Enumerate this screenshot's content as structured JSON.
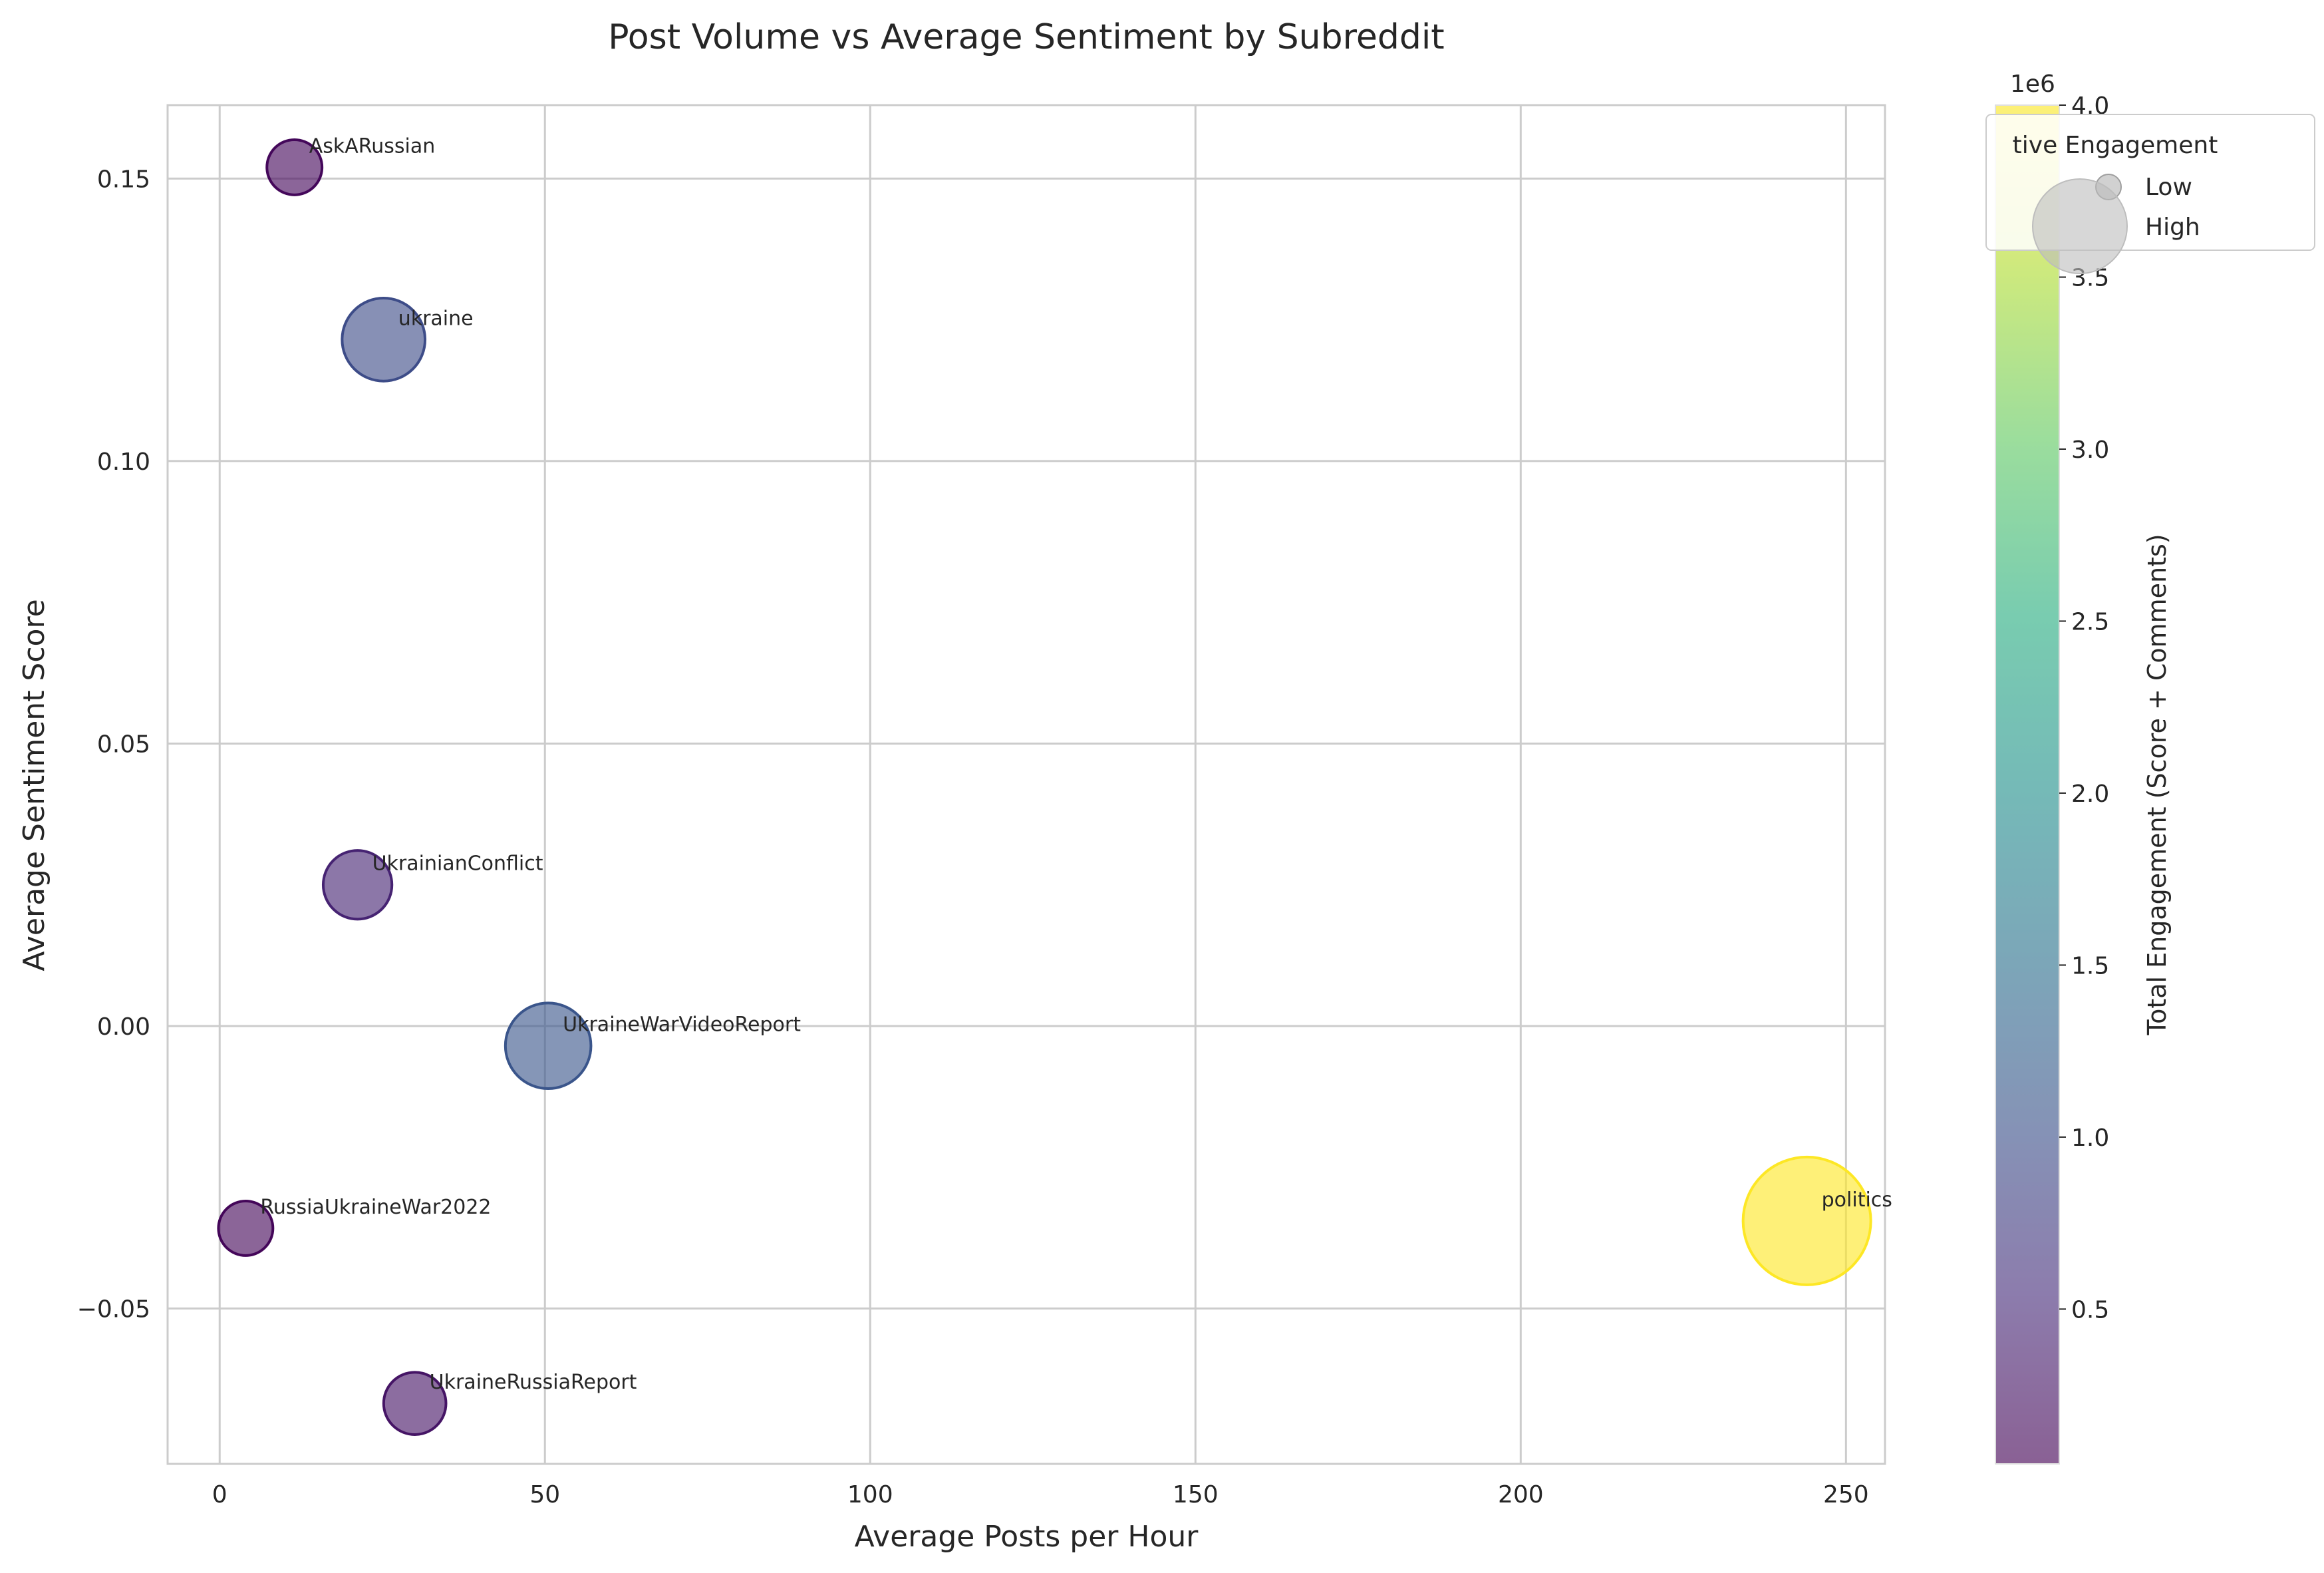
{
  "chart_data": {
    "type": "scatter",
    "title": "Post Volume vs Average Sentiment by Subreddit",
    "xlabel": "Average Posts per Hour",
    "ylabel": "Average Sentiment Score",
    "xlim": [
      -8,
      256
    ],
    "ylim": [
      -0.0775,
      0.163
    ],
    "xticks": [
      0,
      50,
      100,
      150,
      200,
      250
    ],
    "xtick_labels": [
      "0",
      "50",
      "100",
      "150",
      "200",
      "250"
    ],
    "yticks": [
      -0.05,
      0,
      0.05,
      0.1,
      0.15
    ],
    "ytick_labels": [
      "−0.05",
      "0.00",
      "0.05",
      "0.10",
      "0.15"
    ],
    "grid": true,
    "points": [
      {
        "label": "AskARussian",
        "x": 11.5,
        "y": 0.152,
        "engagement": 120000
      },
      {
        "label": "ukraine",
        "x": 25.2,
        "y": 0.1215,
        "engagement": 960000
      },
      {
        "label": "UkrainianConflict",
        "x": 21.2,
        "y": 0.025,
        "engagement": 430000
      },
      {
        "label": "UkraineWarVideoReport",
        "x": 50.5,
        "y": -0.0035,
        "engagement": 1080000
      },
      {
        "label": "RussiaUkraineWar2022",
        "x": 4.0,
        "y": -0.0358,
        "engagement": 110000
      },
      {
        "label": "politics",
        "x": 244.0,
        "y": -0.0345,
        "engagement": 4000000
      },
      {
        "label": "UkraineRussiaReport",
        "x": 30.0,
        "y": -0.0668,
        "engagement": 260000
      }
    ],
    "colorbar": {
      "label": "Total Engagement (Score + Comments)",
      "range": [
        50000,
        4000000
      ],
      "ticks": [
        500000,
        1000000,
        1500000,
        2000000,
        2500000,
        3000000,
        3500000,
        4000000
      ],
      "tick_labels": [
        "0.5",
        "1.0",
        "1.5",
        "2.0",
        "2.5",
        "3.0",
        "3.5",
        "4.0"
      ],
      "offset_label": "1e6",
      "colormap": "viridis"
    },
    "legend": {
      "title": "Relative Engagement",
      "visible_title": "tive Engagement",
      "placement": "upper-right",
      "entries": [
        {
          "label": "Low",
          "size": "small"
        },
        {
          "label": "High",
          "size": "large"
        }
      ]
    }
  },
  "colors": {
    "grid": "#cccccc",
    "frame": "#cccccc",
    "legend_marker": "#bdbdbd"
  }
}
